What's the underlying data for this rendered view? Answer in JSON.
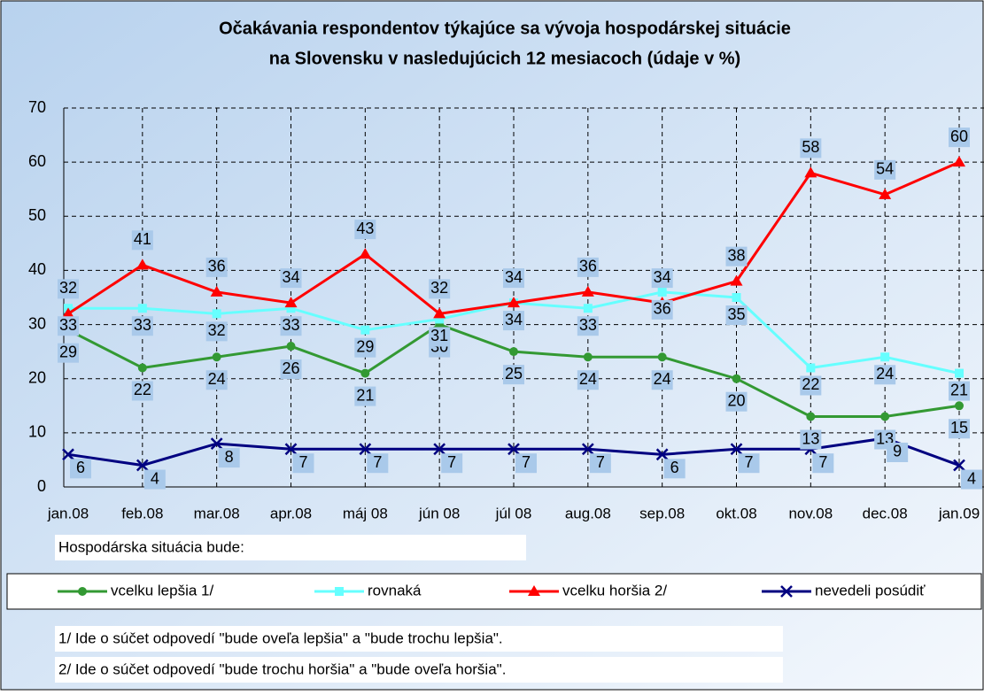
{
  "chart_data": {
    "type": "line",
    "title": [
      "Očakávania respondentov týkajúce sa vývoja hospodárskej situácie",
      "na Slovensku v nasledujúcich 12 mesiacoch  (údaje v %)"
    ],
    "categories": [
      "jan.08",
      "feb.08",
      "mar.08",
      "apr.08",
      "máj 08",
      "jún 08",
      "júl 08",
      "aug.08",
      "sep.08",
      "okt.08",
      "nov.08",
      "dec.08",
      "jan.09"
    ],
    "series": [
      {
        "name": "vcelku lepšia 1/",
        "color": "#339933",
        "marker": "circle",
        "values": [
          29,
          22,
          24,
          26,
          21,
          30,
          25,
          24,
          24,
          20,
          13,
          13,
          15
        ]
      },
      {
        "name": "rovnaká",
        "color": "#66ffff",
        "marker": "square",
        "values": [
          33,
          33,
          32,
          33,
          29,
          31,
          34,
          33,
          36,
          35,
          22,
          24,
          21
        ]
      },
      {
        "name": "vcelku horšia 2/",
        "color": "#ff0000",
        "marker": "triangle",
        "values": [
          32,
          41,
          36,
          34,
          43,
          32,
          34,
          36,
          34,
          38,
          58,
          54,
          60
        ]
      },
      {
        "name": "nevedeli posúdiť",
        "color": "#000080",
        "marker": "x",
        "values": [
          6,
          4,
          8,
          7,
          7,
          7,
          7,
          7,
          6,
          7,
          7,
          9,
          4
        ]
      }
    ],
    "ylim": [
      0,
      70
    ],
    "yticks": [
      0,
      10,
      20,
      30,
      40,
      50,
      60,
      70
    ],
    "grid": true,
    "legend": "bottom",
    "legend_title": "Hospodárska situácia bude:",
    "notes": [
      "1/ Ide o súčet odpovedí \"bude oveľa lepšia\" a \"bude trochu lepšia\".",
      "2/ Ide o súčet odpovedí \"bude trochu horšia\" a \"bude oveľa horšia\"."
    ]
  }
}
